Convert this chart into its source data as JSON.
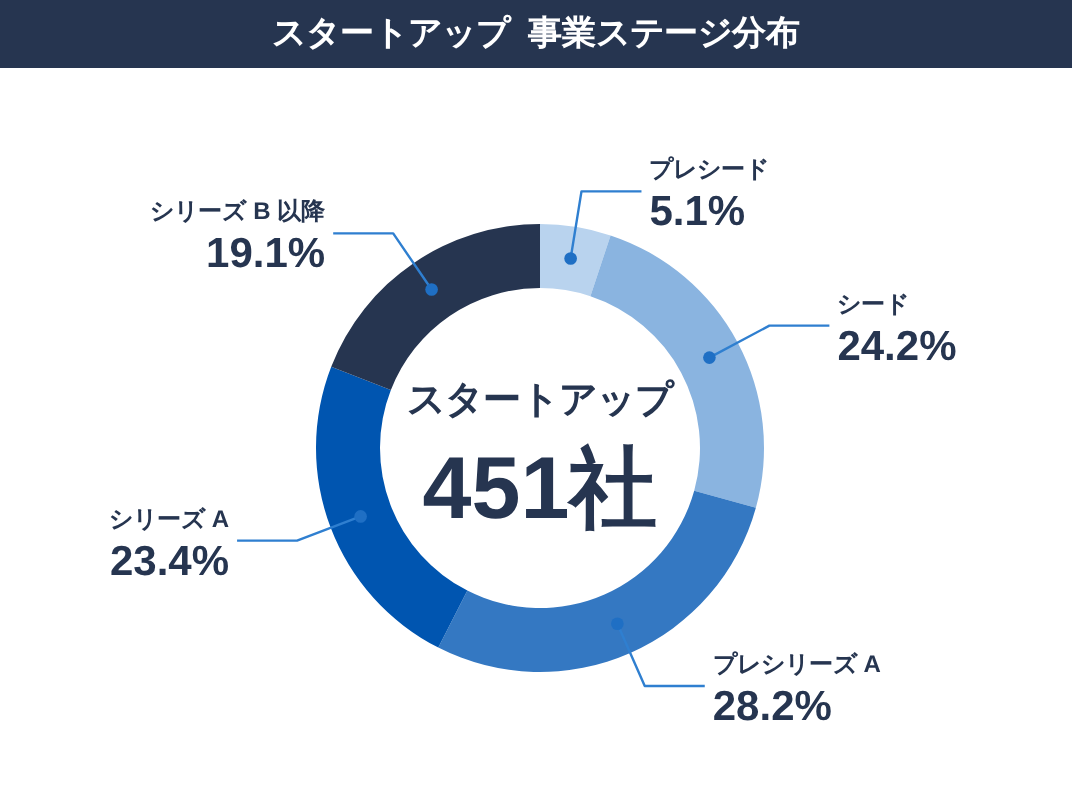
{
  "chart_data": {
    "type": "donut",
    "title": "スタートアップ  事業ステージ分布",
    "categories": [
      "プレシード",
      "シード",
      "プレシリーズ A",
      "シリーズ A",
      "シリーズ B 以降"
    ],
    "values": [
      5.1,
      24.2,
      28.2,
      23.4,
      19.1
    ],
    "colors": [
      "#b9d3ee",
      "#8ab4e0",
      "#3478c2",
      "#0055b0",
      "#263550"
    ],
    "value_labels": [
      "5.1%",
      "24.2%",
      "28.2%",
      "23.4%",
      "19.1%"
    ],
    "annotations": [
      "スタートアップ",
      "451社"
    ]
  }
}
